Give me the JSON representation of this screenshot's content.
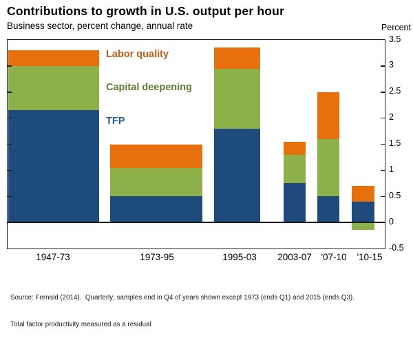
{
  "header": {
    "title": "Contributions to growth in U.S. output per hour",
    "subtitle": "Business sector, percent change, annual rate",
    "y_axis_unit": "Percent"
  },
  "chart_data": {
    "type": "bar",
    "stacked": true,
    "orientation": "vertical",
    "categories": [
      "1947-73",
      "1973-95",
      "1995-03",
      "2003-07",
      "'07-10",
      "'10-15"
    ],
    "series": [
      {
        "name": "TFP",
        "color": "#1F4A7C",
        "label_color": "#2D5A8A",
        "values": [
          2.15,
          0.5,
          1.8,
          0.75,
          0.5,
          0.4
        ]
      },
      {
        "name": "Capital deepening",
        "color": "#8DB04A",
        "label_color": "#5E7B35",
        "values": [
          0.85,
          0.55,
          1.15,
          0.55,
          1.1,
          -0.15
        ]
      },
      {
        "name": "Labor quality",
        "color": "#E5700D",
        "label_color": "#BF5B16",
        "values": [
          0.3,
          0.45,
          0.4,
          0.25,
          0.9,
          0.3
        ]
      }
    ],
    "totals": [
      3.3,
      1.5,
      3.35,
      1.55,
      2.5,
      0.55
    ],
    "title": "Contributions to growth in U.S. output per hour",
    "subtitle": "Business sector, percent change, annual rate",
    "xlabel": "",
    "ylabel": "Percent",
    "ylim": [
      -0.5,
      3.5
    ],
    "yticks": [
      3.5,
      3,
      2.5,
      2,
      1.5,
      1,
      0.5,
      0,
      -0.5
    ],
    "grid": false,
    "legend_position": "inside-top-left",
    "zero_baseline": true
  },
  "notes": {
    "line1": "Source: Fernald (2014).  Quarterly; samples end in Q4 of years shown except 1973 (ends Q1) and 2015 (ends Q3).",
    "line2": "Total factor productivity measured as a residual"
  }
}
